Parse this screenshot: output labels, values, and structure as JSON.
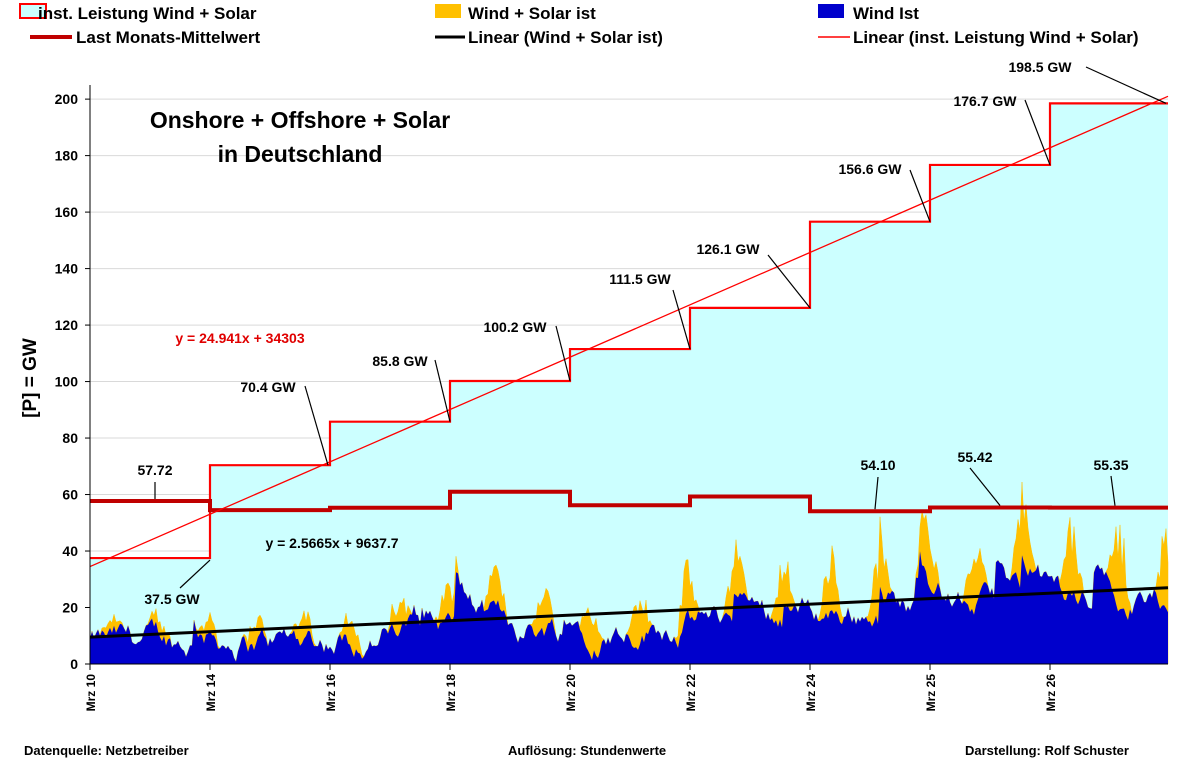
{
  "chart_data": {
    "type": "area",
    "title_lines": [
      "Onshore + Offshore + Solar",
      "in Deutschland"
    ],
    "ylabel": "[P]  = GW",
    "ylim": [
      0,
      205
    ],
    "yticks": [
      0,
      20,
      40,
      60,
      80,
      100,
      120,
      140,
      160,
      180,
      200
    ],
    "xticks": [
      "Mrz 10",
      "Mrz 14",
      "Mrz 16",
      "Mrz 18",
      "Mrz 20",
      "Mrz 22",
      "Mrz 24",
      "Mrz 25",
      "Mrz 26"
    ],
    "legend": [
      {
        "key": "installed",
        "label": "inst. Leistung Wind + Solar",
        "color": "#ff0000",
        "fill": "#ccffff"
      },
      {
        "key": "wind_solar",
        "label": "Wind + Solar ist",
        "color": "#ffc000"
      },
      {
        "key": "wind",
        "label": "Wind Ist",
        "color": "#0000cc"
      },
      {
        "key": "monthly_avg",
        "label": "Last Monats-Mittelwert",
        "color": "#c00000"
      },
      {
        "key": "lin_ws",
        "label": "Linear (Wind + Solar ist)",
        "color": "#000000"
      },
      {
        "key": "lin_inst",
        "label": "Linear (inst. Leistung Wind + Solar)",
        "color": "#ff0000"
      }
    ],
    "installed_steps": [
      {
        "x0": 0,
        "x1": 1,
        "value": 37.5,
        "label": "37.5 GW"
      },
      {
        "x0": 1,
        "x1": 2,
        "value": 70.4,
        "label": "70.4 GW"
      },
      {
        "x0": 2,
        "x1": 3,
        "value": 85.8,
        "label": "85.8 GW"
      },
      {
        "x0": 3,
        "x1": 4,
        "value": 100.2,
        "label": "100.2 GW"
      },
      {
        "x0": 4,
        "x1": 5,
        "value": 111.5,
        "label": "111.5 GW"
      },
      {
        "x0": 5,
        "x1": 6,
        "value": 126.1,
        "label": "126.1 GW"
      },
      {
        "x0": 6,
        "x1": 7,
        "value": 156.6,
        "label": "156.6 GW"
      },
      {
        "x0": 7,
        "x1": 8,
        "value": 176.7,
        "label": "176.7 GW"
      },
      {
        "x0": 8,
        "x1": 9,
        "value": 198.5,
        "label": "198.5 GW"
      }
    ],
    "monthly_avg_steps": [
      {
        "x0": 0,
        "x1": 1,
        "value": 57.72,
        "label": "57.72"
      },
      {
        "x0": 1,
        "x1": 2,
        "value": 54.5,
        "label": ""
      },
      {
        "x0": 2,
        "x1": 3,
        "value": 55.3,
        "label": ""
      },
      {
        "x0": 3,
        "x1": 4,
        "value": 61.0,
        "label": ""
      },
      {
        "x0": 4,
        "x1": 5,
        "value": 56.2,
        "label": ""
      },
      {
        "x0": 5,
        "x1": 6,
        "value": 59.3,
        "label": ""
      },
      {
        "x0": 6,
        "x1": 7,
        "value": 54.1,
        "label": "54.10"
      },
      {
        "x0": 7,
        "x1": 8,
        "value": 55.42,
        "label": "55.42"
      },
      {
        "x0": 8,
        "x1": 9,
        "value": 55.35,
        "label": "55.35"
      }
    ],
    "trend_installed": {
      "equation": "y = 24.941x + 34303",
      "start": 34.5,
      "end": 201
    },
    "trend_actual": {
      "equation": "y = 2.5665x + 9637.7",
      "start": 9.5,
      "end": 27.0
    },
    "wind_solar_max": 65,
    "series_actual_note": "hourly values, x index 0..9"
  },
  "footer": {
    "left": "Datenquelle: Netzbetreiber",
    "center": "Auflösung: Stundenwerte",
    "right": "Darstellung:  Rolf Schuster"
  }
}
